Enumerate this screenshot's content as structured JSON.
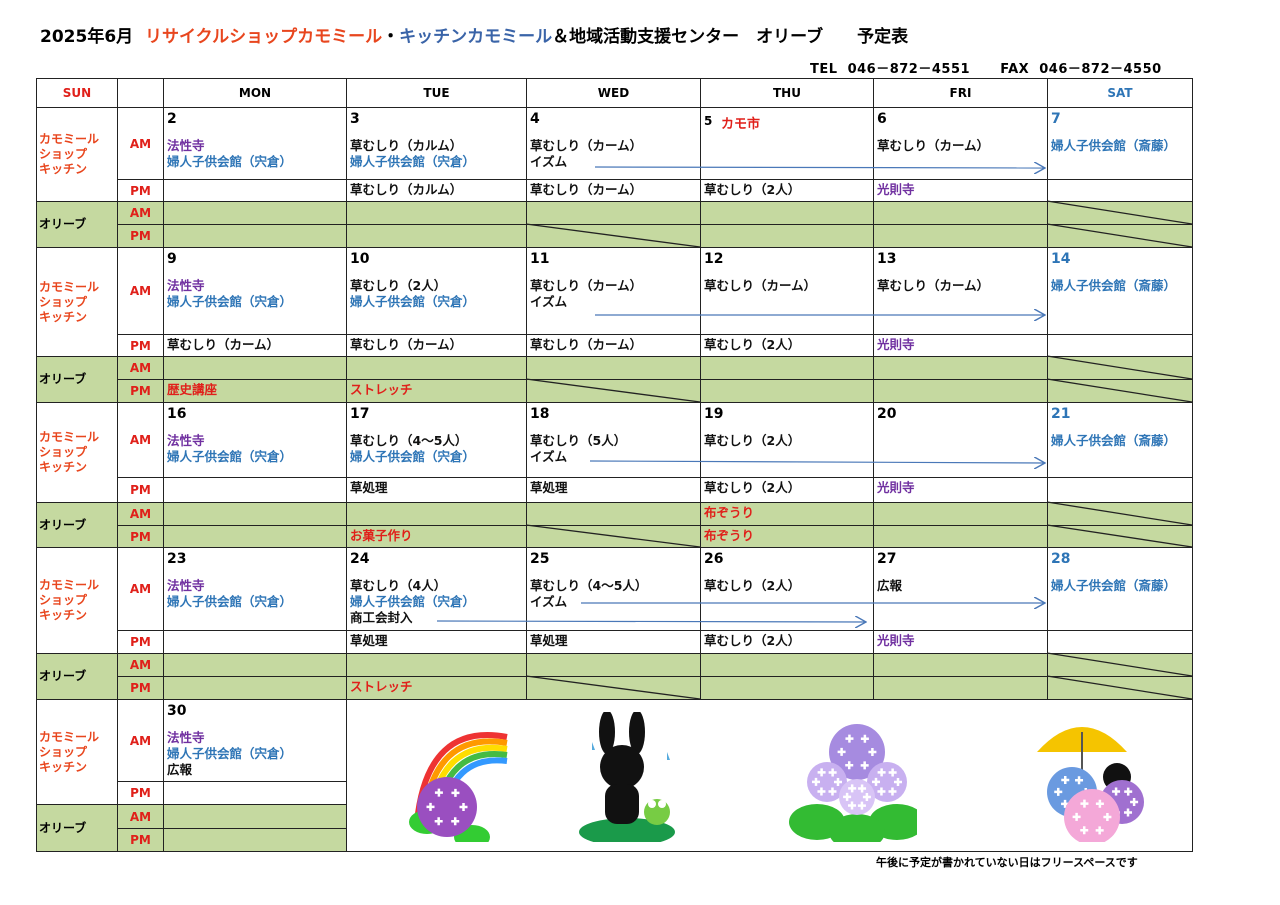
{
  "title": {
    "month": "2025年6月",
    "shop": "リサイクルショップカモミール",
    "dot": "・",
    "kitchen": "キッチンカモミール",
    "center": "＆地域活動支援センター　オリーブ",
    "suffix": "予定表"
  },
  "contact": {
    "tel": "TEL  046－872－4551",
    "fax": "FAX  046－872－4550"
  },
  "colors": {
    "red": "#e0201a",
    "orange": "#e8461e",
    "blue": "#2e75b6",
    "purple": "#7030a0",
    "black": "#111111",
    "title_blue": "#3a64a8",
    "green": "#c5d9a0"
  },
  "headers": {
    "sun": "SUN",
    "days": [
      "MON",
      "TUE",
      "WED",
      "THU",
      "FRI",
      "SAT"
    ]
  },
  "labels": {
    "kamo": "カモミール\nショップ\nキッチン",
    "olive": "オリーブ",
    "am": "AM",
    "pm": "PM"
  },
  "weeks": [
    {
      "days": [
        {
          "date": "2",
          "am": [
            {
              "t": "法性寺",
              "c": "purple"
            },
            {
              "t": "婦人子供会館（宍倉）",
              "c": "blue"
            }
          ],
          "pm": []
        },
        {
          "date": "3",
          "am": [
            {
              "t": "草むしり（カルム）",
              "c": "black"
            },
            {
              "t": "婦人子供会館（宍倉）",
              "c": "blue"
            }
          ],
          "pm": [
            {
              "t": "草むしり（カルム）",
              "c": "black"
            }
          ]
        },
        {
          "date": "4",
          "am": [
            {
              "t": "草むしり（カーム）",
              "c": "black"
            },
            {
              "t": "イズム",
              "c": "black"
            }
          ],
          "pm": [
            {
              "t": "草むしり（カーム）",
              "c": "black"
            }
          ]
        },
        {
          "date": "5",
          "date_note": "カモ市",
          "am": [],
          "pm": [
            {
              "t": "草むしり（2人）",
              "c": "black"
            }
          ]
        },
        {
          "date": "6",
          "am": [
            {
              "t": "草むしり（カーム）",
              "c": "black"
            }
          ],
          "pm": [
            {
              "t": "光則寺",
              "c": "purple"
            }
          ]
        },
        {
          "date": "7",
          "am": [
            {
              "t": "婦人子供会館（斎藤）",
              "c": "blue"
            }
          ],
          "pm": []
        }
      ]
    },
    {
      "days": [
        {
          "date": "9",
          "am": [
            {
              "t": "法性寺",
              "c": "purple"
            },
            {
              "t": "婦人子供会館（宍倉）",
              "c": "blue"
            }
          ],
          "pm": [
            {
              "t": "草むしり（カーム）",
              "c": "black"
            }
          ],
          "olive_pm": "歴史講座"
        },
        {
          "date": "10",
          "am": [
            {
              "t": "草むしり（2人）",
              "c": "black"
            },
            {
              "t": "婦人子供会館（宍倉）",
              "c": "blue"
            }
          ],
          "pm": [
            {
              "t": "草むしり（カーム）",
              "c": "black"
            }
          ],
          "olive_pm": "ストレッチ"
        },
        {
          "date": "11",
          "am": [
            {
              "t": "草むしり（カーム）",
              "c": "black"
            },
            {
              "t": "イズム",
              "c": "black"
            }
          ],
          "pm": [
            {
              "t": "草むしり（カーム）",
              "c": "black"
            }
          ]
        },
        {
          "date": "12",
          "am": [
            {
              "t": "草むしり（カーム）",
              "c": "black"
            }
          ],
          "pm": [
            {
              "t": "草むしり（2人）",
              "c": "black"
            }
          ]
        },
        {
          "date": "13",
          "am": [
            {
              "t": "草むしり（カーム）",
              "c": "black"
            }
          ],
          "pm": [
            {
              "t": "光則寺",
              "c": "purple"
            }
          ]
        },
        {
          "date": "14",
          "am": [
            {
              "t": "婦人子供会館（斎藤）",
              "c": "blue"
            }
          ],
          "pm": []
        }
      ]
    },
    {
      "days": [
        {
          "date": "16",
          "am": [
            {
              "t": "法性寺",
              "c": "purple"
            },
            {
              "t": "婦人子供会館（宍倉）",
              "c": "blue"
            }
          ],
          "pm": []
        },
        {
          "date": "17",
          "am": [
            {
              "t": "草むしり（4～5人）",
              "c": "black"
            },
            {
              "t": "婦人子供会館（宍倉）",
              "c": "blue"
            }
          ],
          "pm": [
            {
              "t": "草処理",
              "c": "black"
            }
          ],
          "olive_pm": "お菓子作り"
        },
        {
          "date": "18",
          "am": [
            {
              "t": "草むしり（5人）",
              "c": "black"
            },
            {
              "t": "イズム",
              "c": "black"
            }
          ],
          "pm": [
            {
              "t": "草処理",
              "c": "black"
            }
          ]
        },
        {
          "date": "19",
          "am": [
            {
              "t": "草むしり（2人）",
              "c": "black"
            }
          ],
          "pm": [
            {
              "t": "草むしり（2人）",
              "c": "black"
            }
          ],
          "olive_am": "布ぞうり",
          "olive_pm": "布ぞうり"
        },
        {
          "date": "20",
          "am": [],
          "pm": [
            {
              "t": "光則寺",
              "c": "purple"
            }
          ]
        },
        {
          "date": "21",
          "am": [
            {
              "t": "婦人子供会館（斎藤）",
              "c": "blue"
            }
          ],
          "pm": []
        }
      ]
    },
    {
      "days": [
        {
          "date": "23",
          "am": [
            {
              "t": "法性寺",
              "c": "purple"
            },
            {
              "t": "婦人子供会館（宍倉）",
              "c": "blue"
            }
          ],
          "pm": []
        },
        {
          "date": "24",
          "am": [
            {
              "t": "草むしり（4人）",
              "c": "black"
            },
            {
              "t": "婦人子供会館（宍倉）",
              "c": "blue"
            },
            {
              "t": "商工会封入",
              "c": "black"
            }
          ],
          "pm": [
            {
              "t": "草処理",
              "c": "black"
            }
          ],
          "olive_pm": "ストレッチ"
        },
        {
          "date": "25",
          "am": [
            {
              "t": "草むしり（4～5人）",
              "c": "black"
            },
            {
              "t": "イズム",
              "c": "black"
            }
          ],
          "pm": [
            {
              "t": "草処理",
              "c": "black"
            }
          ]
        },
        {
          "date": "26",
          "am": [
            {
              "t": "草むしり（2人）",
              "c": "black"
            }
          ],
          "pm": [
            {
              "t": "草むしり（2人）",
              "c": "black"
            }
          ]
        },
        {
          "date": "27",
          "am": [
            {
              "t": "広報",
              "c": "black"
            }
          ],
          "pm": [
            {
              "t": "光則寺",
              "c": "purple"
            }
          ]
        },
        {
          "date": "28",
          "am": [
            {
              "t": "婦人子供会館（斎藤）",
              "c": "blue"
            }
          ],
          "pm": []
        }
      ]
    },
    {
      "days": [
        {
          "date": "30",
          "am": [
            {
              "t": "法性寺",
              "c": "purple"
            },
            {
              "t": "婦人子供会館（宍倉）",
              "c": "blue"
            },
            {
              "t": "広報",
              "c": "black"
            }
          ],
          "pm": []
        }
      ]
    }
  ],
  "illustrations": [
    "rainbow-hydrangea",
    "black-rabbit-with-frog",
    "hydrangea",
    "rabbit-with-umbrella"
  ],
  "footer_note": "午後に予定が書かれていない日はフリースペースです"
}
